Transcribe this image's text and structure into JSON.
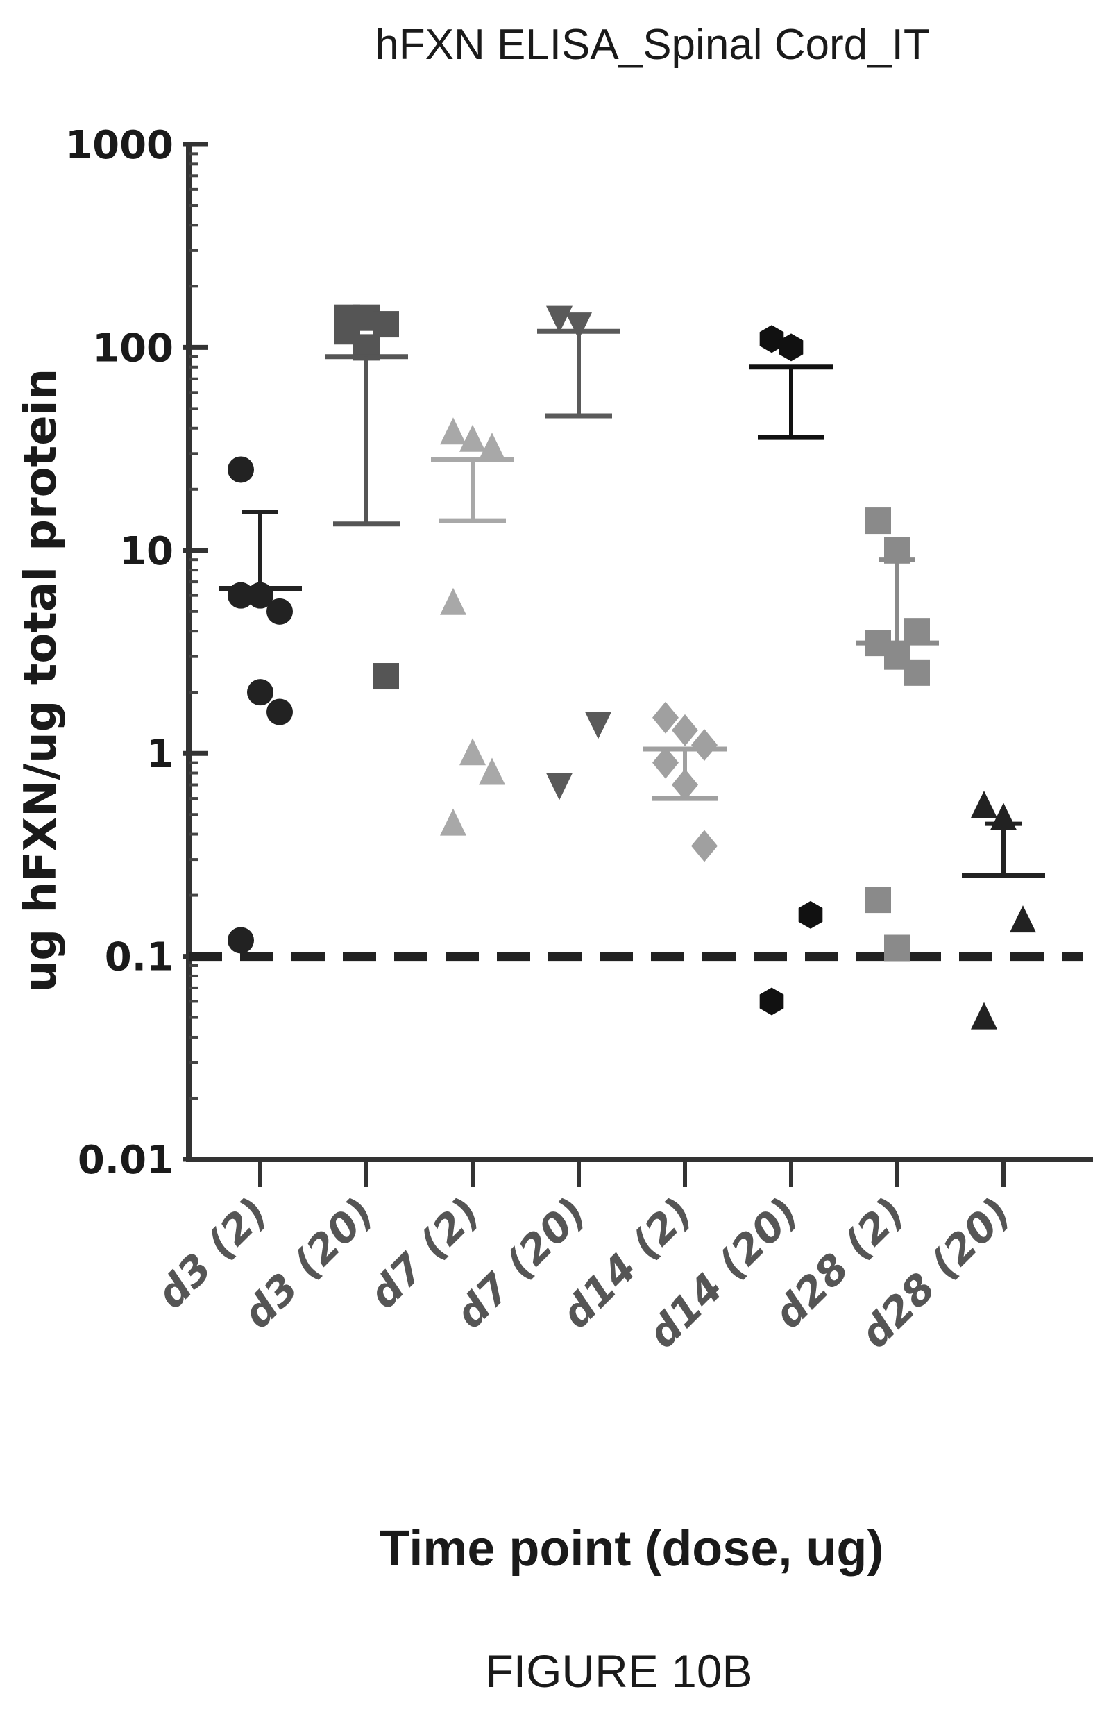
{
  "chart_data": {
    "type": "scatter",
    "title": "hFXN ELISA_Spinal Cord_IT",
    "xlabel": "Time point (dose, ug)",
    "ylabel": "ug hFXN/ug total protein",
    "y_scale": "log",
    "ylim": [
      0.01,
      1000
    ],
    "y_ticks": [
      "1000",
      "100",
      "10",
      "1",
      "0.1",
      "0.01"
    ],
    "categories": [
      "d3 (2)",
      "d3 (20)",
      "d7 (2)",
      "d7 (20)",
      "d14 (2)",
      "d14 (20)",
      "d28 (2)",
      "d28 (20)"
    ],
    "reference_line": {
      "y": 0.1,
      "style": "dashed"
    },
    "groups": [
      {
        "category": "d3 (2)",
        "marker": "circle",
        "color": "#222222",
        "points": [
          25,
          6,
          5,
          6,
          2,
          1.6,
          0.12
        ],
        "mean": 6.5,
        "sem_upper": 15.5
      },
      {
        "category": "d3 (20)",
        "marker": "square",
        "color": "#555555",
        "points": [
          140,
          140,
          130,
          120,
          100,
          2.4
        ],
        "mean": 90,
        "sem_lower": 13.5
      },
      {
        "category": "d7 (2)",
        "marker": "triangle-up",
        "color": "#a8a8a8",
        "points": [
          38,
          35,
          32,
          5.5,
          1,
          0.8,
          0.45
        ],
        "mean": 28,
        "sem_lower": 14
      },
      {
        "category": "d7 (20)",
        "marker": "triangle-down",
        "color": "#5a5a5a",
        "points": [
          140,
          130,
          1.4,
          0.7
        ],
        "mean": 120,
        "sem_lower": 46
      },
      {
        "category": "d14 (2)",
        "marker": "diamond",
        "color": "#a0a0a0",
        "points": [
          1.5,
          1.3,
          1.1,
          0.9,
          0.7,
          0.35
        ],
        "mean": 1.05,
        "sem_lower": 0.6
      },
      {
        "category": "d14 (20)",
        "marker": "hexagon",
        "color": "#111111",
        "points": [
          110,
          100,
          0.16,
          0.06
        ],
        "mean": 80,
        "sem_lower": 36
      },
      {
        "category": "d28 (2)",
        "marker": "square",
        "color": "#8a8a8a",
        "points": [
          14,
          10,
          4,
          3.5,
          3,
          2.5,
          0.19,
          0.11
        ],
        "mean": 3.5,
        "sem_upper": 9
      },
      {
        "category": "d28 (20)",
        "marker": "triangle-up",
        "color": "#222222",
        "points": [
          0.55,
          0.48,
          0.15,
          0.05
        ],
        "mean": 0.25,
        "sem_upper": 0.45
      }
    ],
    "grid": false,
    "legend": "none"
  },
  "caption": "FIGURE 10B"
}
